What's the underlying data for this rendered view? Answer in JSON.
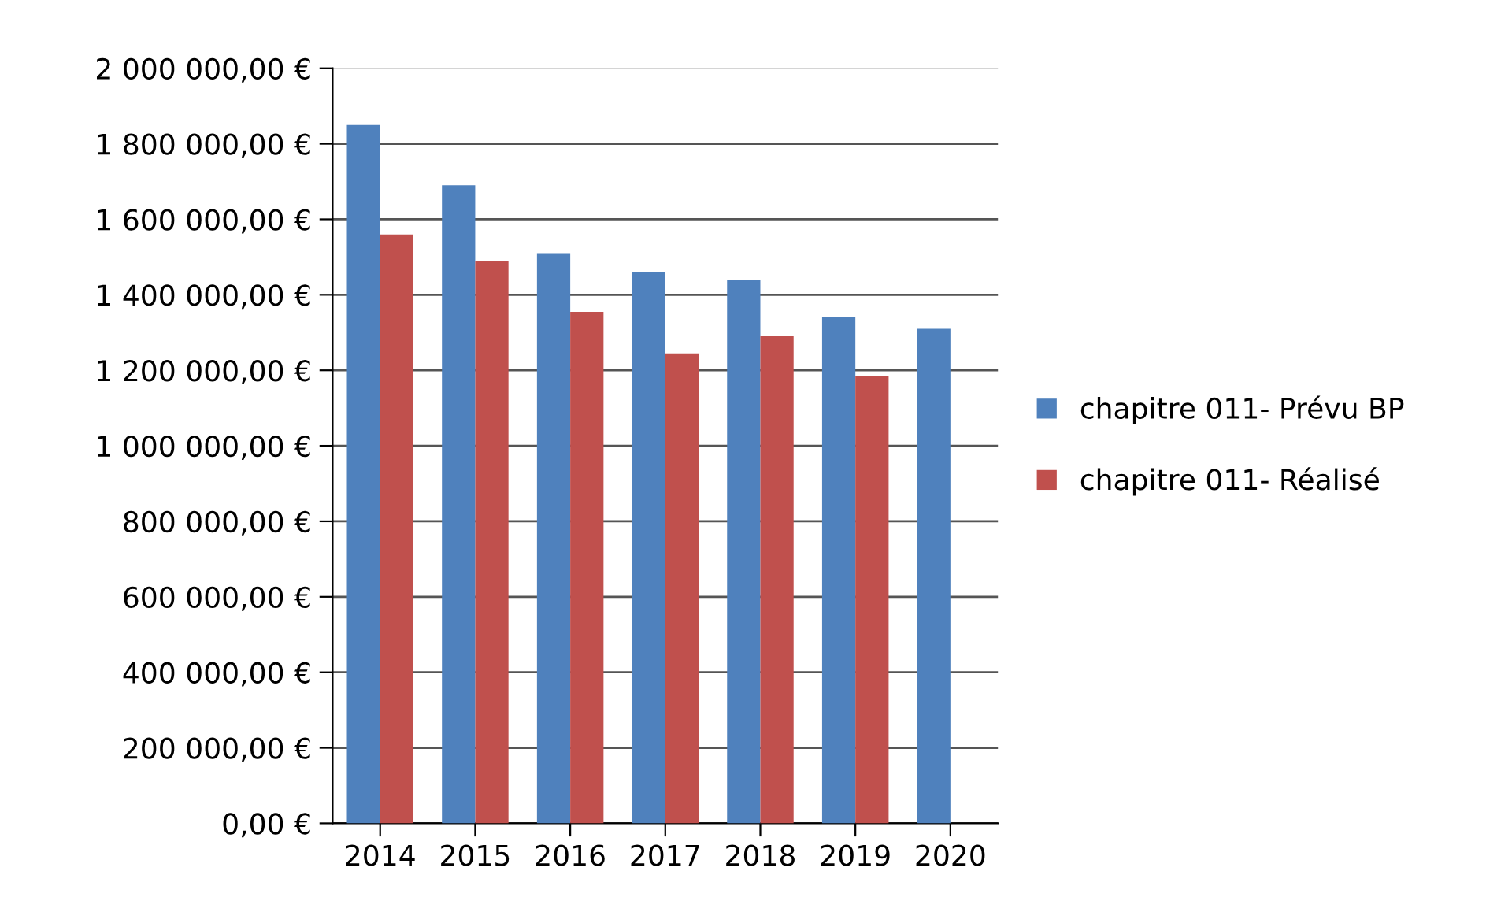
{
  "chart_data": {
    "type": "bar",
    "categories": [
      "2014",
      "2015",
      "2016",
      "2017",
      "2018",
      "2019",
      "2020"
    ],
    "series": [
      {
        "name": "chapitre 011- Prévu BP",
        "color": "#4f81bd",
        "values": [
          1850000,
          1690000,
          1510000,
          1460000,
          1440000,
          1340000,
          1310000
        ]
      },
      {
        "name": "chapitre 011- Réalisé",
        "color": "#c0504d",
        "values": [
          1560000,
          1490000,
          1355000,
          1245000,
          1290000,
          1185000,
          null
        ]
      }
    ],
    "ylim": [
      0,
      2000000
    ],
    "yticks": [
      {
        "value": 0,
        "label": "0,00 €"
      },
      {
        "value": 200000,
        "label": "200 000,00 €"
      },
      {
        "value": 400000,
        "label": "400 000,00 €"
      },
      {
        "value": 600000,
        "label": "600 000,00 €"
      },
      {
        "value": 800000,
        "label": "800 000,00 €"
      },
      {
        "value": 1000000,
        "label": "1 000 000,00 €"
      },
      {
        "value": 1200000,
        "label": "1 200 000,00 €"
      },
      {
        "value": 1400000,
        "label": "1 400 000,00 €"
      },
      {
        "value": 1600000,
        "label": "1 600 000,00 €"
      },
      {
        "value": 1800000,
        "label": "1 800 000,00 €"
      },
      {
        "value": 2000000,
        "label": "2 000 000,00 €"
      }
    ],
    "grid": "y",
    "legend": "right"
  }
}
